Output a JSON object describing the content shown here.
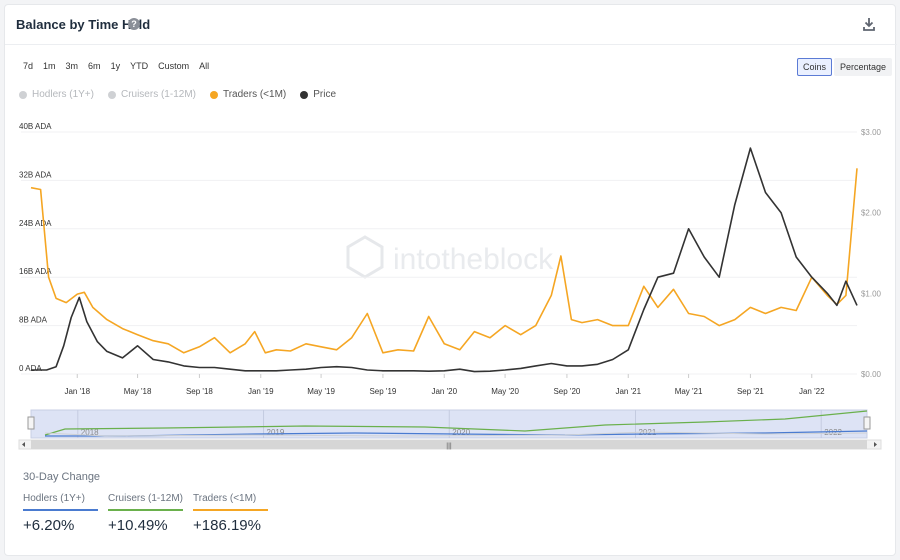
{
  "header": {
    "title": "Balance by Time Held",
    "help_icon": "?"
  },
  "ranges": [
    "7d",
    "1m",
    "3m",
    "6m",
    "1y",
    "YTD",
    "Custom",
    "All"
  ],
  "units": {
    "options": [
      "Coins",
      "Percentage"
    ],
    "selected": "Coins"
  },
  "legend": [
    {
      "label": "Hodlers (1Y+)",
      "color": "#cfd1d4",
      "text_color": "#b5b8bc"
    },
    {
      "label": "Cruisers (1-12M)",
      "color": "#cfd1d4",
      "text_color": "#b5b8bc"
    },
    {
      "label": "Traders (<1M)",
      "color": "#f5a623",
      "text_color": "#555555"
    },
    {
      "label": "Price",
      "color": "#333333",
      "text_color": "#555555"
    }
  ],
  "watermark": "intotheblock",
  "chart_data": {
    "type": "line",
    "left_axis": {
      "ticks": [
        "0 ADA",
        "8B ADA",
        "16B ADA",
        "24B ADA",
        "32B ADA",
        "40B ADA"
      ],
      "range": [
        0,
        40
      ]
    },
    "right_axis": {
      "ticks": [
        "$0.00",
        "$1.00",
        "$2.00",
        "$3.00"
      ],
      "range": [
        0,
        3
      ]
    },
    "x_labels": [
      "Jan '18",
      "May '18",
      "Sep '18",
      "Jan '19",
      "May '19",
      "Sep '19",
      "Jan '20",
      "May '20",
      "Sep '20",
      "Jan '21",
      "May '21",
      "Sep '21",
      "Jan '22"
    ],
    "x_start": "2017-10-01",
    "x_end": "2022-04-01",
    "series": [
      {
        "name": "Traders (<1M)",
        "color": "#f5a623",
        "axis": "left",
        "points": [
          [
            "2017-10-01",
            30.8
          ],
          [
            "2017-10-20",
            30.5
          ],
          [
            "2017-11-05",
            16
          ],
          [
            "2017-11-20",
            12.5
          ],
          [
            "2017-12-10",
            11.8
          ],
          [
            "2018-01-01",
            13.2
          ],
          [
            "2018-01-15",
            13.5
          ],
          [
            "2018-02-01",
            11
          ],
          [
            "2018-03-01",
            9
          ],
          [
            "2018-04-01",
            7.5
          ],
          [
            "2018-05-01",
            6.5
          ],
          [
            "2018-06-01",
            5.5
          ],
          [
            "2018-07-01",
            5
          ],
          [
            "2018-08-01",
            3.5
          ],
          [
            "2018-09-01",
            4.5
          ],
          [
            "2018-10-01",
            6
          ],
          [
            "2018-11-01",
            3.5
          ],
          [
            "2018-12-01",
            5
          ],
          [
            "2018-12-20",
            7
          ],
          [
            "2019-01-10",
            3.5
          ],
          [
            "2019-02-01",
            4
          ],
          [
            "2019-03-01",
            3.8
          ],
          [
            "2019-04-01",
            5
          ],
          [
            "2019-05-01",
            4.5
          ],
          [
            "2019-06-01",
            4
          ],
          [
            "2019-07-01",
            6
          ],
          [
            "2019-08-01",
            10
          ],
          [
            "2019-09-01",
            3.5
          ],
          [
            "2019-10-01",
            4
          ],
          [
            "2019-11-01",
            3.8
          ],
          [
            "2019-12-01",
            9.5
          ],
          [
            "2020-01-01",
            5
          ],
          [
            "2020-02-01",
            4
          ],
          [
            "2020-03-01",
            7
          ],
          [
            "2020-04-01",
            6
          ],
          [
            "2020-05-01",
            8
          ],
          [
            "2020-06-01",
            6.5
          ],
          [
            "2020-07-01",
            8
          ],
          [
            "2020-08-01",
            13
          ],
          [
            "2020-08-20",
            19.5
          ],
          [
            "2020-09-10",
            9
          ],
          [
            "2020-10-01",
            8.5
          ],
          [
            "2020-11-01",
            9
          ],
          [
            "2020-12-01",
            8
          ],
          [
            "2021-01-01",
            8
          ],
          [
            "2021-02-01",
            14.5
          ],
          [
            "2021-03-01",
            11
          ],
          [
            "2021-04-01",
            14
          ],
          [
            "2021-05-01",
            10
          ],
          [
            "2021-06-01",
            9.5
          ],
          [
            "2021-07-01",
            8
          ],
          [
            "2021-08-01",
            9
          ],
          [
            "2021-09-01",
            11
          ],
          [
            "2021-10-01",
            10
          ],
          [
            "2021-11-01",
            11
          ],
          [
            "2021-12-01",
            10.5
          ],
          [
            "2022-01-01",
            16
          ],
          [
            "2022-02-01",
            13
          ],
          [
            "2022-02-20",
            11.5
          ],
          [
            "2022-03-10",
            13
          ],
          [
            "2022-04-01",
            34
          ]
        ]
      },
      {
        "name": "Price",
        "color": "#333333",
        "axis": "right",
        "points": [
          [
            "2017-10-01",
            0.05
          ],
          [
            "2017-11-01",
            0.05
          ],
          [
            "2017-11-20",
            0.09
          ],
          [
            "2017-12-05",
            0.35
          ],
          [
            "2017-12-20",
            0.7
          ],
          [
            "2018-01-05",
            0.95
          ],
          [
            "2018-01-20",
            0.65
          ],
          [
            "2018-02-10",
            0.4
          ],
          [
            "2018-03-01",
            0.28
          ],
          [
            "2018-04-01",
            0.2
          ],
          [
            "2018-05-01",
            0.35
          ],
          [
            "2018-06-01",
            0.18
          ],
          [
            "2018-07-01",
            0.15
          ],
          [
            "2018-08-01",
            0.1
          ],
          [
            "2018-09-01",
            0.08
          ],
          [
            "2018-10-01",
            0.08
          ],
          [
            "2018-11-01",
            0.06
          ],
          [
            "2018-12-01",
            0.04
          ],
          [
            "2019-01-01",
            0.04
          ],
          [
            "2019-02-01",
            0.04
          ],
          [
            "2019-03-01",
            0.05
          ],
          [
            "2019-04-01",
            0.06
          ],
          [
            "2019-05-01",
            0.08
          ],
          [
            "2019-06-01",
            0.09
          ],
          [
            "2019-07-01",
            0.08
          ],
          [
            "2019-08-01",
            0.05
          ],
          [
            "2019-09-01",
            0.04
          ],
          [
            "2019-10-01",
            0.04
          ],
          [
            "2019-11-01",
            0.04
          ],
          [
            "2019-12-01",
            0.035
          ],
          [
            "2020-01-01",
            0.04
          ],
          [
            "2020-02-01",
            0.06
          ],
          [
            "2020-03-01",
            0.03
          ],
          [
            "2020-04-01",
            0.035
          ],
          [
            "2020-05-01",
            0.05
          ],
          [
            "2020-06-01",
            0.07
          ],
          [
            "2020-07-01",
            0.1
          ],
          [
            "2020-08-01",
            0.13
          ],
          [
            "2020-09-01",
            0.1
          ],
          [
            "2020-10-01",
            0.1
          ],
          [
            "2020-11-01",
            0.12
          ],
          [
            "2020-12-01",
            0.18
          ],
          [
            "2021-01-01",
            0.3
          ],
          [
            "2021-02-01",
            0.8
          ],
          [
            "2021-03-01",
            1.2
          ],
          [
            "2021-04-01",
            1.25
          ],
          [
            "2021-05-01",
            1.8
          ],
          [
            "2021-06-01",
            1.45
          ],
          [
            "2021-07-01",
            1.2
          ],
          [
            "2021-08-01",
            2.1
          ],
          [
            "2021-09-01",
            2.8
          ],
          [
            "2021-10-01",
            2.25
          ],
          [
            "2021-11-01",
            2.0
          ],
          [
            "2021-12-01",
            1.45
          ],
          [
            "2022-01-01",
            1.2
          ],
          [
            "2022-02-01",
            1.0
          ],
          [
            "2022-02-20",
            0.85
          ],
          [
            "2022-03-10",
            1.15
          ],
          [
            "2022-04-01",
            0.85
          ]
        ]
      }
    ],
    "navigator": {
      "year_labels": [
        "2018",
        "2019",
        "2020",
        "2021",
        "2022"
      ],
      "scroll_icon": "|||"
    }
  },
  "thirty_day_change": {
    "title": "30-Day Change",
    "columns": [
      {
        "label": "Hodlers (1Y+)",
        "value": "+6.20%",
        "color": "#4a7bd0"
      },
      {
        "label": "Cruisers (1-12M)",
        "value": "+10.49%",
        "color": "#6ab04c"
      },
      {
        "label": "Traders (<1M)",
        "value": "+186.19%",
        "color": "#f5a623"
      }
    ]
  }
}
